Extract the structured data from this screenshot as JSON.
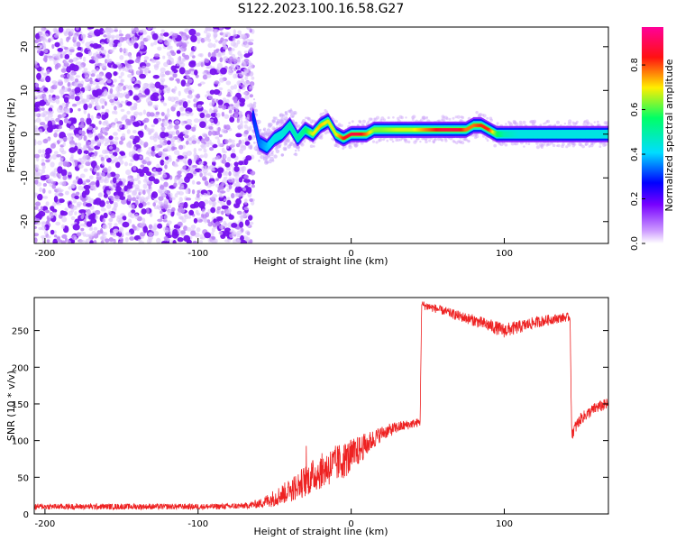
{
  "title": "S122.2023.100.16.58.G27",
  "colors": {
    "snr_line": "#ee2222",
    "spectro_scatter": "#7a22ee",
    "colormap": [
      "#ffffff",
      "#cc99ff",
      "#7700ff",
      "#0000ff",
      "#00ddff",
      "#00ff66",
      "#ffee00",
      "#ff1111",
      "#ff0099"
    ]
  },
  "chart_data": [
    {
      "type": "heatmap",
      "title": "S122.2023.100.16.58.G27",
      "xlabel": "Height of straight line (km)",
      "ylabel": "Frequency (Hz)",
      "xlim": [
        -207,
        168
      ],
      "ylim": [
        -25,
        24.5
      ],
      "xticks": [
        -200,
        -100,
        0,
        100
      ],
      "yticks": [
        -20,
        -10,
        0,
        10,
        20
      ],
      "noise_region_x": [
        -207,
        -64
      ],
      "signal_trace": {
        "x": [
          -64,
          -60,
          -55,
          -50,
          -45,
          -40,
          -35,
          -30,
          -25,
          -20,
          -15,
          -10,
          -5,
          0,
          5,
          10,
          15,
          20,
          30,
          40,
          50,
          60,
          70,
          75,
          80,
          85,
          90,
          95,
          100,
          110,
          120,
          130,
          140,
          150,
          160,
          168
        ],
        "y": [
          4,
          -2,
          -3,
          -1,
          0,
          2,
          -1,
          1,
          0,
          2,
          3,
          0,
          -1,
          0,
          0,
          0,
          1,
          1,
          1,
          1,
          1,
          1,
          1,
          1,
          2,
          2,
          1,
          0,
          0,
          0,
          0,
          0,
          0,
          0,
          0,
          0
        ],
        "amplitude": [
          0.3,
          0.35,
          0.4,
          0.45,
          0.45,
          0.5,
          0.5,
          0.55,
          0.7,
          0.75,
          0.7,
          0.7,
          0.85,
          0.9,
          0.9,
          0.8,
          0.65,
          0.65,
          0.7,
          0.7,
          0.8,
          0.9,
          0.9,
          0.8,
          0.8,
          0.85,
          0.85,
          0.6,
          0.5,
          0.45,
          0.45,
          0.45,
          0.45,
          0.45,
          0.45,
          0.45
        ]
      },
      "colorbar": {
        "label": "Normalized spectral amplitude",
        "range": [
          0.0,
          0.97
        ],
        "ticks": [
          "0.0",
          "0.2",
          "0.4",
          "0.6",
          "0.8"
        ]
      }
    },
    {
      "type": "line",
      "xlabel": "Height of straight line (km)",
      "ylabel": "SNR (10 * v/v)",
      "xlim": [
        -207,
        168
      ],
      "ylim": [
        0,
        295
      ],
      "xticks": [
        -200,
        -100,
        0,
        100
      ],
      "yticks": [
        0,
        50,
        100,
        150,
        200,
        250
      ],
      "series": [
        {
          "x": [
            -207,
            -180,
            -150,
            -120,
            -90,
            -70,
            -60,
            -50,
            -40,
            -30,
            -20,
            -10,
            0,
            10,
            20,
            30,
            40,
            45,
            46,
            50,
            60,
            70,
            80,
            90,
            100,
            110,
            120,
            130,
            140,
            143,
            144,
            150,
            160,
            168
          ],
          "y": [
            10,
            10,
            10,
            10,
            10,
            11,
            14,
            22,
            32,
            45,
            58,
            68,
            78,
            95,
            110,
            118,
            123,
            125,
            285,
            283,
            277,
            270,
            264,
            257,
            250,
            255,
            261,
            265,
            268,
            268,
            110,
            130,
            145,
            150
          ],
          "noise": [
            4,
            4,
            4,
            4,
            4,
            4,
            6,
            12,
            16,
            22,
            24,
            26,
            24,
            16,
            10,
            8,
            6,
            6,
            6,
            6,
            6,
            7,
            8,
            9,
            10,
            9,
            8,
            7,
            6,
            6,
            10,
            8,
            8,
            8
          ]
        }
      ]
    }
  ]
}
